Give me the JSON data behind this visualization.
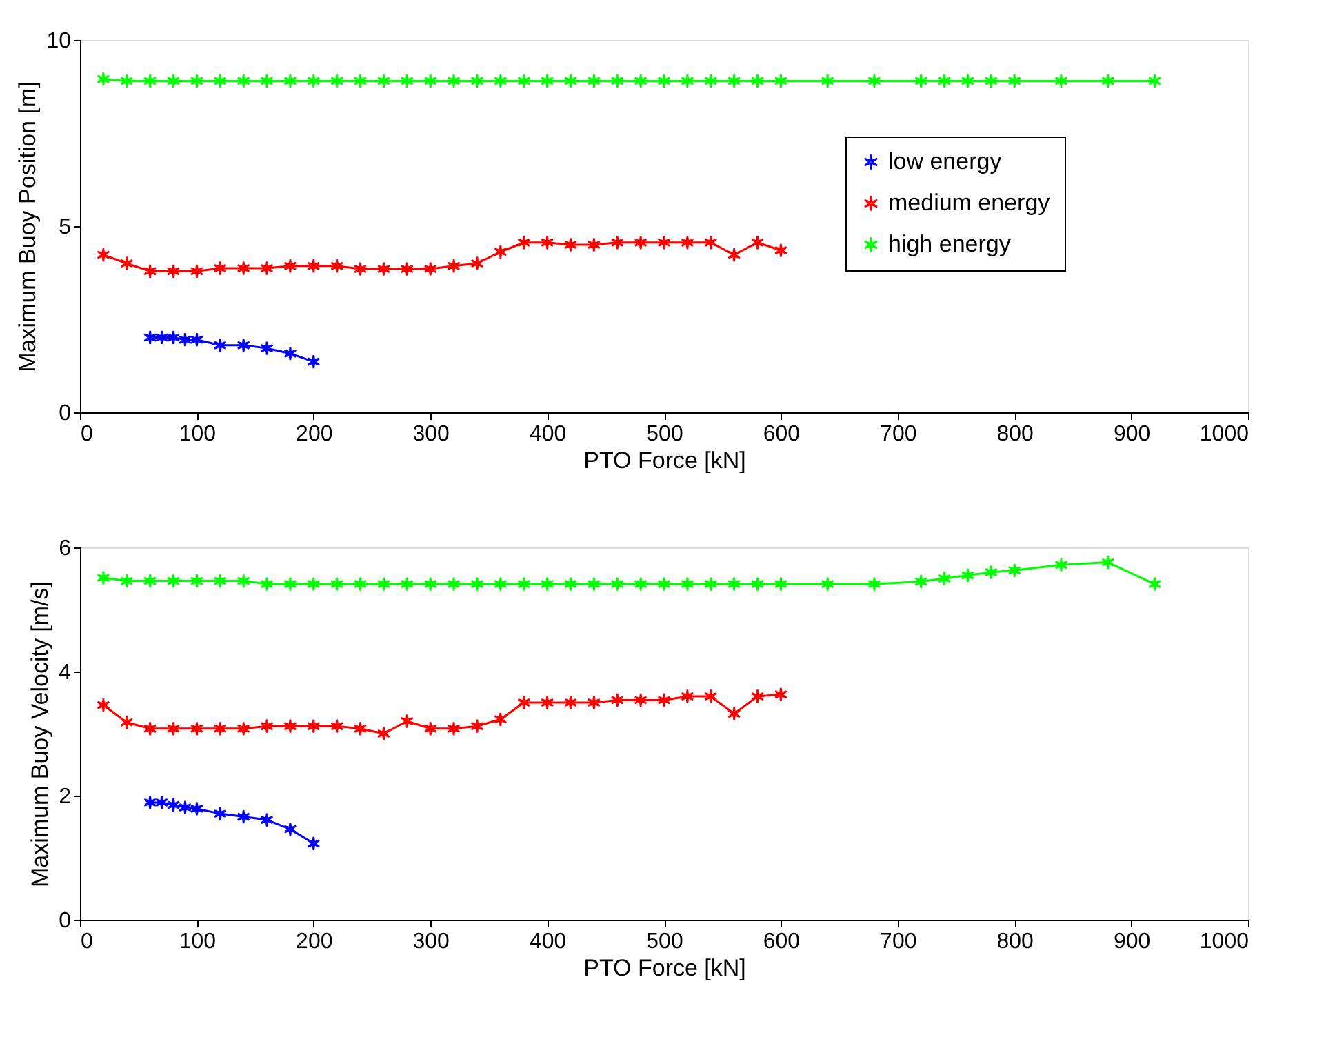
{
  "chart_data": [
    {
      "type": "line",
      "xlabel": "PTO Force [kN]",
      "ylabel": "Maximum Buoy Position [m]",
      "xlim": [
        0,
        1000
      ],
      "xticks": [
        0,
        100,
        200,
        300,
        400,
        500,
        600,
        700,
        800,
        900,
        1000
      ],
      "ylim": [
        0,
        10
      ],
      "yticks": [
        0,
        5,
        10
      ],
      "marker": "cross",
      "legend": "top right",
      "grid": false,
      "series": [
        {
          "name": "low energy",
          "color": "#0000ff",
          "x": [
            60,
            70,
            80,
            90,
            100,
            120,
            140,
            160,
            180,
            200
          ],
          "values": [
            2.01,
            2.01,
            2.01,
            1.95,
            1.95,
            1.8,
            1.8,
            1.72,
            1.58,
            1.36
          ]
        },
        {
          "name": "medium energy",
          "color": "#ff0000",
          "x": [
            20,
            40,
            60,
            80,
            100,
            120,
            140,
            160,
            180,
            200,
            220,
            240,
            260,
            280,
            300,
            320,
            340,
            360,
            380,
            400,
            420,
            440,
            460,
            480,
            500,
            520,
            540,
            560,
            580,
            600
          ],
          "values": [
            4.23,
            4.0,
            3.79,
            3.79,
            3.79,
            3.87,
            3.87,
            3.87,
            3.93,
            3.93,
            3.93,
            3.85,
            3.85,
            3.85,
            3.85,
            3.93,
            4.0,
            4.31,
            4.56,
            4.56,
            4.5,
            4.5,
            4.56,
            4.56,
            4.56,
            4.56,
            4.56,
            4.23,
            4.56,
            4.35
          ]
        },
        {
          "name": "high energy",
          "color": "#00ff00",
          "x": [
            20,
            40,
            60,
            80,
            100,
            120,
            140,
            160,
            180,
            200,
            220,
            240,
            260,
            280,
            300,
            320,
            340,
            360,
            380,
            400,
            420,
            440,
            460,
            480,
            500,
            520,
            540,
            560,
            580,
            600,
            640,
            680,
            720,
            740,
            760,
            780,
            800,
            840,
            880,
            920
          ],
          "values": [
            8.95,
            8.9,
            8.9,
            8.9,
            8.9,
            8.9,
            8.9,
            8.9,
            8.9,
            8.9,
            8.9,
            8.9,
            8.9,
            8.9,
            8.9,
            8.9,
            8.9,
            8.9,
            8.9,
            8.9,
            8.9,
            8.9,
            8.9,
            8.9,
            8.9,
            8.9,
            8.9,
            8.9,
            8.9,
            8.9,
            8.9,
            8.9,
            8.9,
            8.9,
            8.9,
            8.9,
            8.9,
            8.9,
            8.9,
            8.9
          ]
        }
      ]
    },
    {
      "type": "line",
      "xlabel": "PTO Force [kN]",
      "ylabel": "Maximum Buoy Velocity [m/s]",
      "xlim": [
        0,
        1000
      ],
      "xticks": [
        0,
        100,
        200,
        300,
        400,
        500,
        600,
        700,
        800,
        900,
        1000
      ],
      "ylim": [
        0,
        6
      ],
      "yticks": [
        0,
        2,
        4,
        6
      ],
      "marker": "cross",
      "grid": false,
      "series": [
        {
          "color": "#0000ff",
          "x": [
            60,
            70,
            80,
            90,
            100,
            120,
            140,
            160,
            180,
            200
          ],
          "values": [
            1.89,
            1.89,
            1.85,
            1.81,
            1.79,
            1.71,
            1.66,
            1.61,
            1.46,
            1.23
          ]
        },
        {
          "color": "#ff0000",
          "x": [
            20,
            40,
            60,
            80,
            100,
            120,
            140,
            160,
            180,
            200,
            220,
            240,
            260,
            280,
            300,
            320,
            340,
            360,
            380,
            400,
            420,
            440,
            460,
            480,
            500,
            520,
            540,
            560,
            580,
            600
          ],
          "values": [
            3.46,
            3.18,
            3.08,
            3.08,
            3.08,
            3.08,
            3.08,
            3.12,
            3.12,
            3.12,
            3.12,
            3.08,
            3.0,
            3.2,
            3.08,
            3.08,
            3.12,
            3.23,
            3.5,
            3.5,
            3.5,
            3.5,
            3.54,
            3.54,
            3.54,
            3.6,
            3.6,
            3.32,
            3.6,
            3.63
          ]
        },
        {
          "color": "#00ff00",
          "x": [
            20,
            40,
            60,
            80,
            100,
            120,
            140,
            160,
            180,
            200,
            220,
            240,
            260,
            280,
            300,
            320,
            340,
            360,
            380,
            400,
            420,
            440,
            460,
            480,
            500,
            520,
            540,
            560,
            580,
            600,
            640,
            680,
            720,
            740,
            760,
            780,
            800,
            840,
            880,
            920
          ],
          "values": [
            5.51,
            5.46,
            5.46,
            5.46,
            5.46,
            5.46,
            5.46,
            5.41,
            5.41,
            5.41,
            5.41,
            5.41,
            5.41,
            5.41,
            5.41,
            5.41,
            5.41,
            5.41,
            5.41,
            5.41,
            5.41,
            5.41,
            5.41,
            5.41,
            5.41,
            5.41,
            5.41,
            5.41,
            5.41,
            5.41,
            5.41,
            5.41,
            5.45,
            5.5,
            5.55,
            5.6,
            5.63,
            5.72,
            5.76,
            5.41
          ]
        }
      ]
    }
  ]
}
